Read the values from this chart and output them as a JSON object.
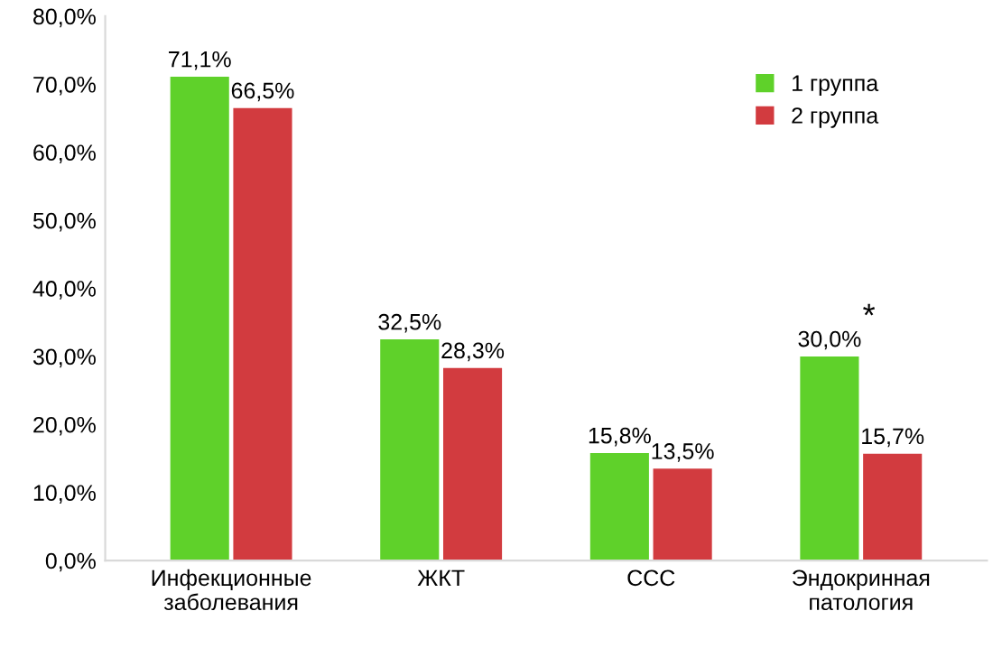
{
  "chart_data": {
    "type": "bar",
    "categories": [
      "Инфекционные\nзаболевания",
      "ЖКТ",
      "ССС",
      "Эндокринная\nпатология"
    ],
    "series": [
      {
        "name": "1 группа",
        "color": "#5fd12a",
        "values": [
          71.1,
          32.5,
          15.8,
          30.0
        ],
        "value_labels": [
          "71,1%",
          "32,5%",
          "15,8%",
          "30,0%"
        ]
      },
      {
        "name": "2 группа",
        "color": "#d23b3f",
        "values": [
          66.5,
          28.3,
          13.5,
          15.7
        ],
        "value_labels": [
          "66,5%",
          "28,3%",
          "13,5%",
          "15,7%"
        ]
      }
    ],
    "ylim": [
      0,
      80
    ],
    "yticks": [
      {
        "value": 0,
        "label": "0,0%"
      },
      {
        "value": 10,
        "label": "10,0%"
      },
      {
        "value": 20,
        "label": "20,0%"
      },
      {
        "value": 30,
        "label": "30,0%"
      },
      {
        "value": 40,
        "label": "40,0%"
      },
      {
        "value": 50,
        "label": "50,0%"
      },
      {
        "value": 60,
        "label": "60,0%"
      },
      {
        "value": 70,
        "label": "70,0%"
      },
      {
        "value": 80,
        "label": "80,0%"
      }
    ],
    "annotations": [
      {
        "text": "*",
        "x": "Эндокринная\nпатология",
        "y": 30.0
      }
    ],
    "legend": "top right",
    "grid": false
  }
}
